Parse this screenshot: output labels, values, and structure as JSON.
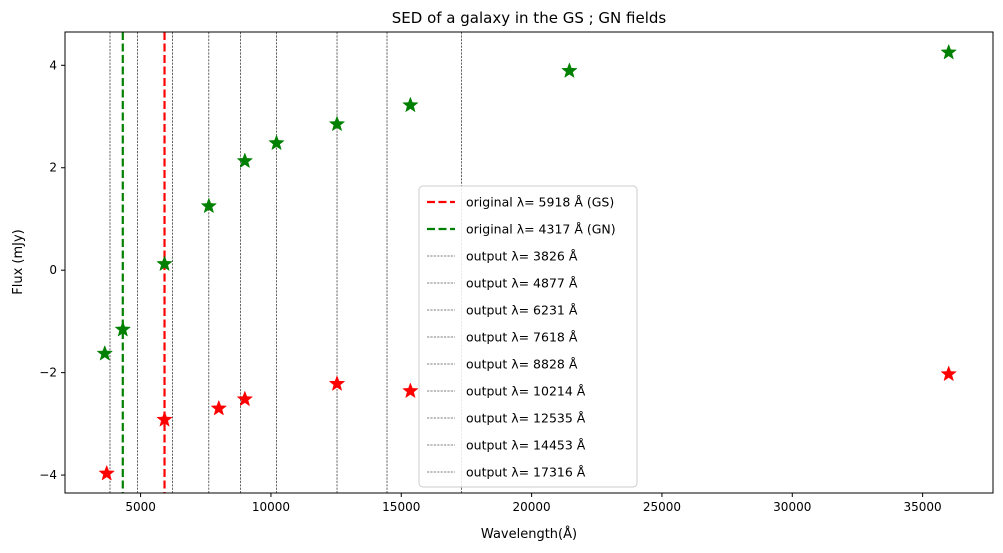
{
  "chart_data": {
    "type": "scatter",
    "title": "SED of a galaxy in the GS ; GN fields",
    "xlabel": "Wavelength(Å)",
    "ylabel": "Flux (mJy)",
    "xlim": [
      2100,
      37700
    ],
    "ylim": [
      -4.35,
      4.65
    ],
    "xticks": [
      5000,
      10000,
      15000,
      20000,
      25000,
      30000,
      35000
    ],
    "xtick_labels": [
      "5000",
      "10000",
      "15000",
      "20000",
      "25000",
      "30000",
      "35000"
    ],
    "yticks": [
      -4,
      -2,
      0,
      2,
      4
    ],
    "ytick_labels": [
      "−4",
      "−2",
      "0",
      "2",
      "4"
    ],
    "grid": false,
    "legend_position": "center",
    "series": [
      {
        "name": "GS",
        "marker": "star",
        "color": "#ff0000",
        "x": [
          3700,
          5918,
          8000,
          9000,
          12535,
          15350,
          36000
        ],
        "y": [
          -3.97,
          -2.92,
          -2.7,
          -2.52,
          -2.22,
          -2.36,
          -2.03
        ]
      },
      {
        "name": "GN",
        "marker": "star",
        "color": "#008000",
        "x": [
          3626,
          4317,
          5918,
          7618,
          9000,
          10214,
          12535,
          15350,
          21450,
          36000
        ],
        "y": [
          -1.63,
          -1.16,
          0.12,
          1.25,
          2.13,
          2.48,
          2.85,
          3.22,
          3.89,
          4.25
        ]
      }
    ],
    "vlines": [
      {
        "x": 5918,
        "color": "#ff0000",
        "style": "dashed-thick",
        "label": "original λ= 5918 Å (GS)"
      },
      {
        "x": 4317,
        "color": "#008000",
        "style": "dashed-thick",
        "label": "original λ= 4317 Å (GN)"
      },
      {
        "x": 3826,
        "color": "#000000",
        "style": "dashed-thin",
        "label": "output λ= 3826 Å"
      },
      {
        "x": 4877,
        "color": "#000000",
        "style": "dashed-thin",
        "label": "output λ= 4877 Å"
      },
      {
        "x": 6231,
        "color": "#000000",
        "style": "dashed-thin",
        "label": "output λ= 6231 Å"
      },
      {
        "x": 7618,
        "color": "#000000",
        "style": "dashed-thin",
        "label": "output λ= 7618 Å"
      },
      {
        "x": 8828,
        "color": "#000000",
        "style": "dashed-thin",
        "label": "output λ= 8828 Å"
      },
      {
        "x": 10214,
        "color": "#000000",
        "style": "dashed-thin",
        "label": "output λ= 10214 Å"
      },
      {
        "x": 12535,
        "color": "#000000",
        "style": "dashed-thin",
        "label": "output λ= 12535 Å"
      },
      {
        "x": 14453,
        "color": "#000000",
        "style": "dashed-thin",
        "label": "output λ= 14453 Å"
      },
      {
        "x": 17316,
        "color": "#000000",
        "style": "dashed-thin",
        "label": "output λ= 17316 Å"
      }
    ]
  }
}
